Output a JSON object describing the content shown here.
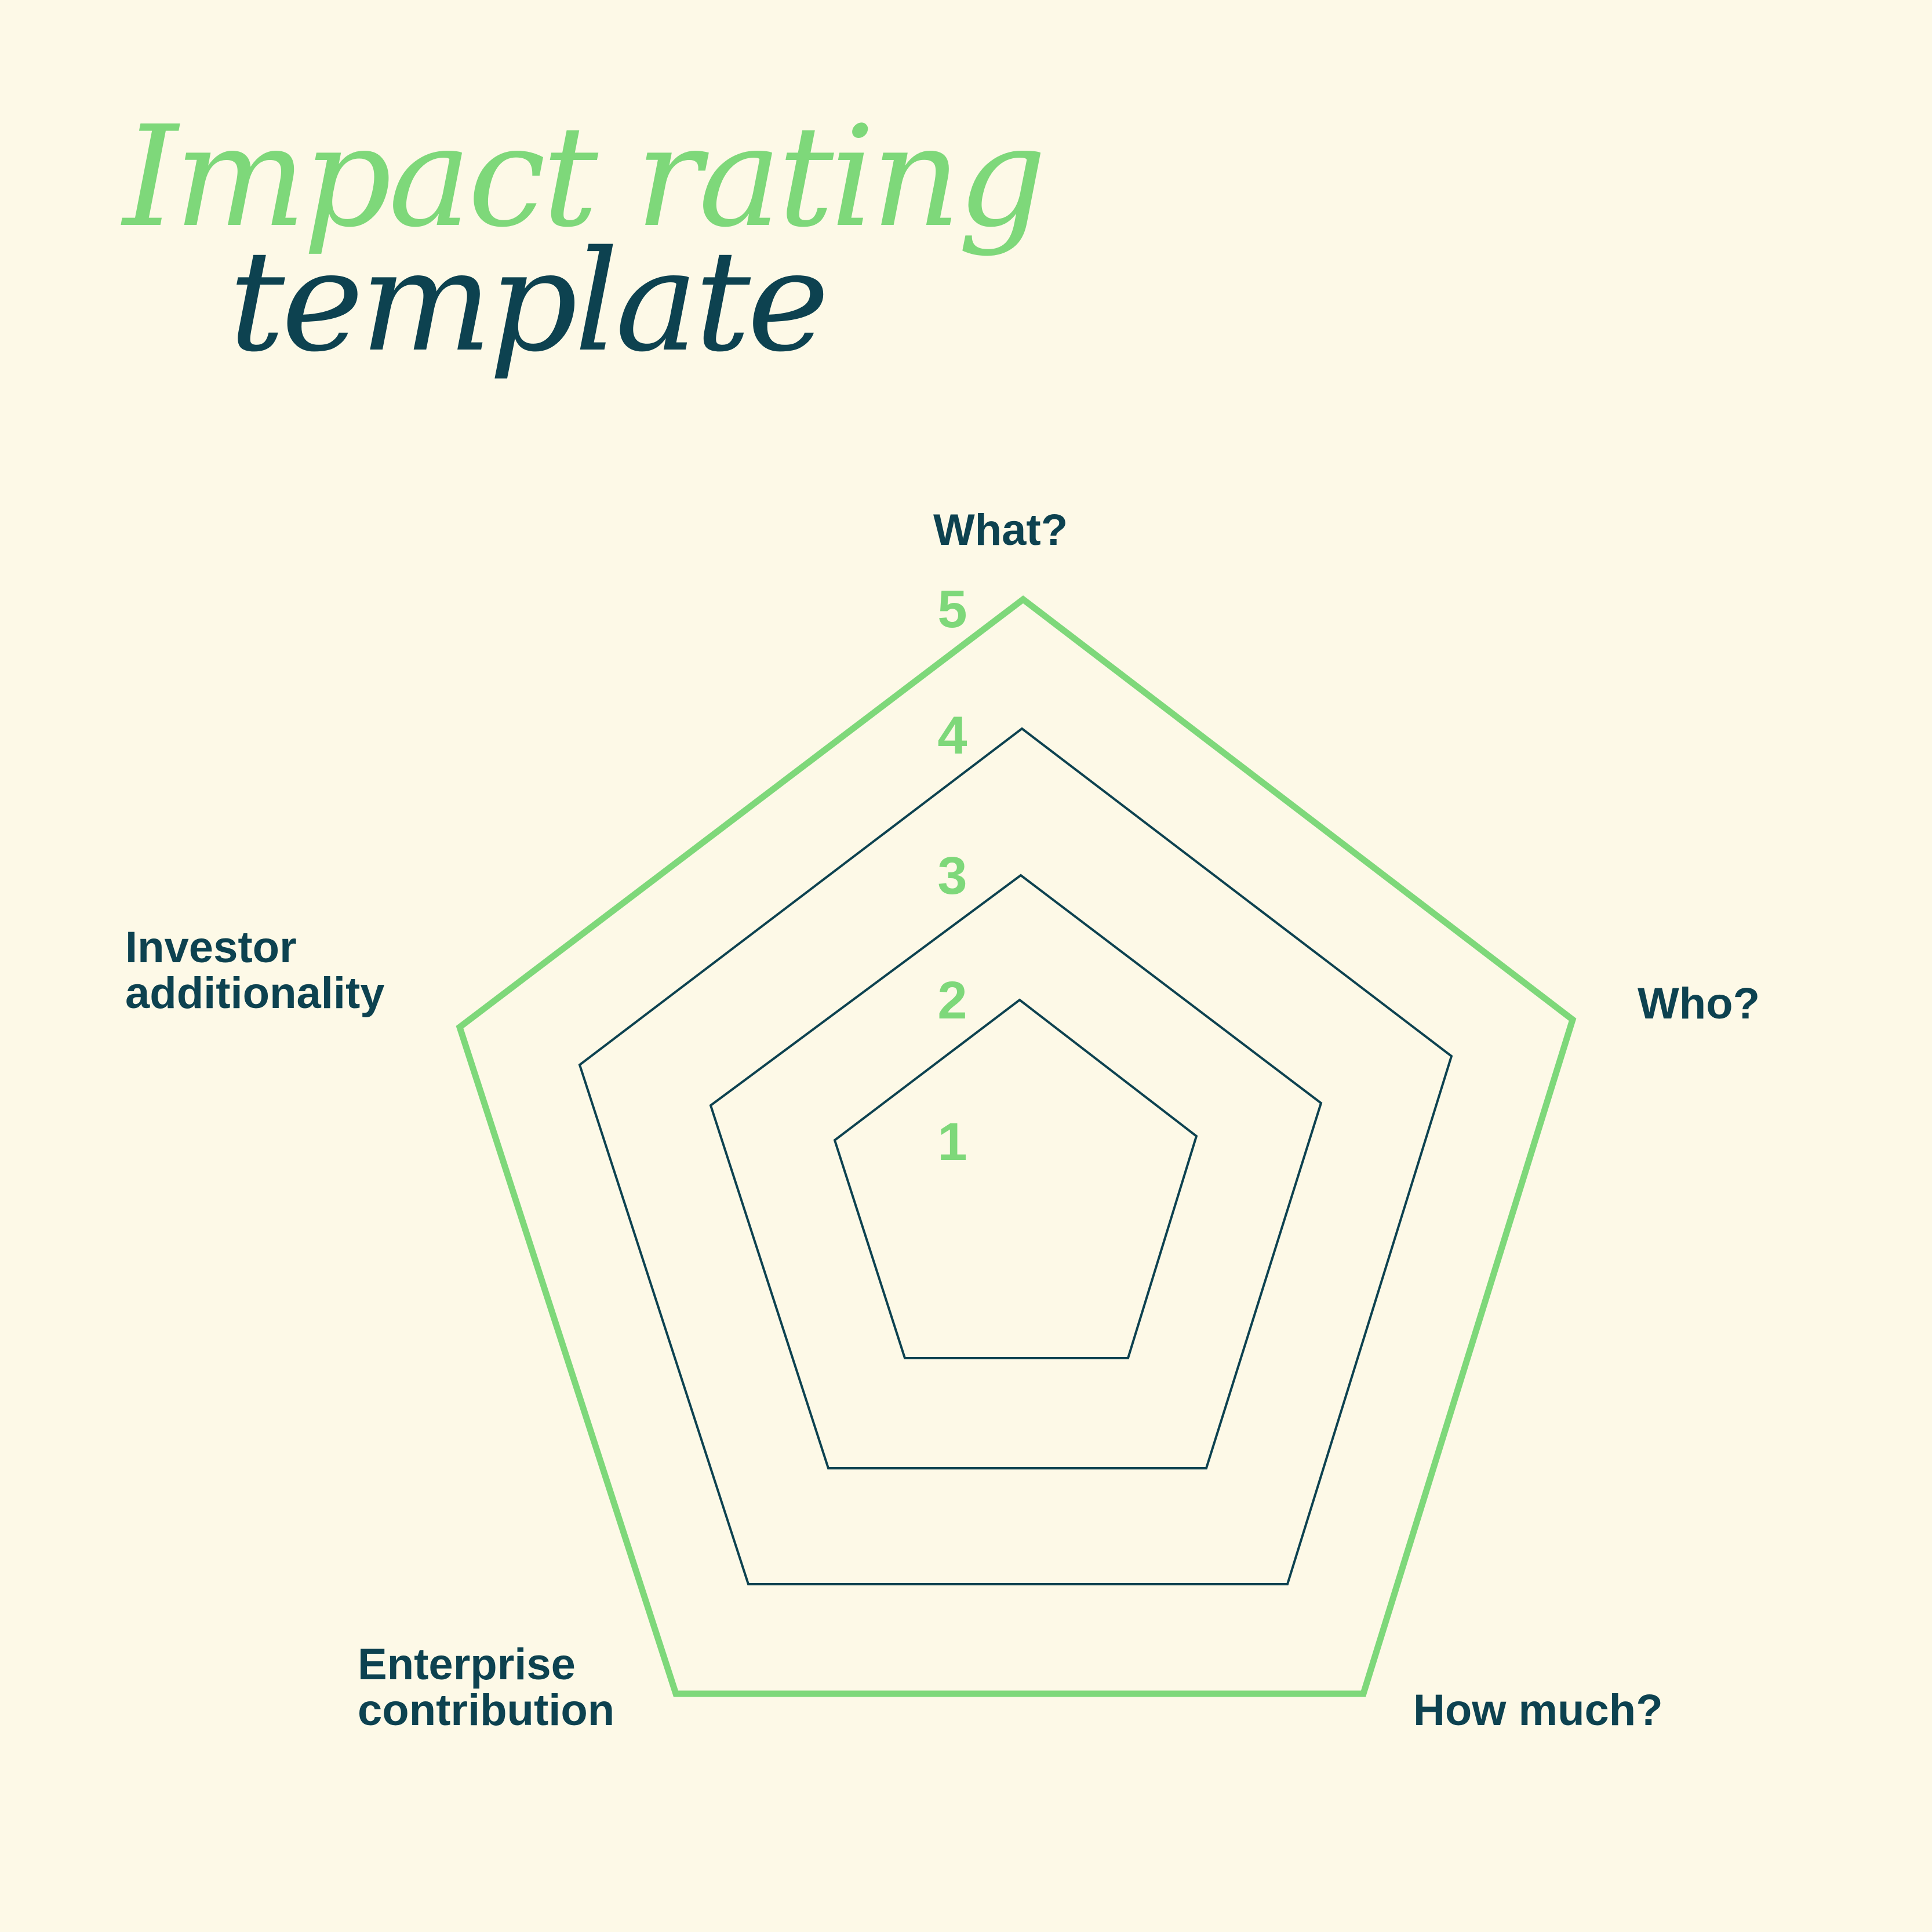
{
  "title": {
    "line1": "Impact rating",
    "line2": "template"
  },
  "diagram": {
    "type": "radar-template",
    "axes": [
      {
        "key": "what",
        "label_lines": [
          "What?"
        ]
      },
      {
        "key": "who",
        "label_lines": [
          "Who?"
        ]
      },
      {
        "key": "how_much",
        "label_lines": [
          "How much?"
        ]
      },
      {
        "key": "enterprise",
        "label_lines": [
          "Enterprise",
          "contribution"
        ]
      },
      {
        "key": "investor",
        "label_lines": [
          "Investor",
          "additionality"
        ]
      }
    ],
    "levels": [
      "1",
      "2",
      "3",
      "4",
      "5"
    ],
    "colors": {
      "background": "#fdf9e7",
      "accent": "#7ed87a",
      "ink": "#0d4250"
    }
  }
}
